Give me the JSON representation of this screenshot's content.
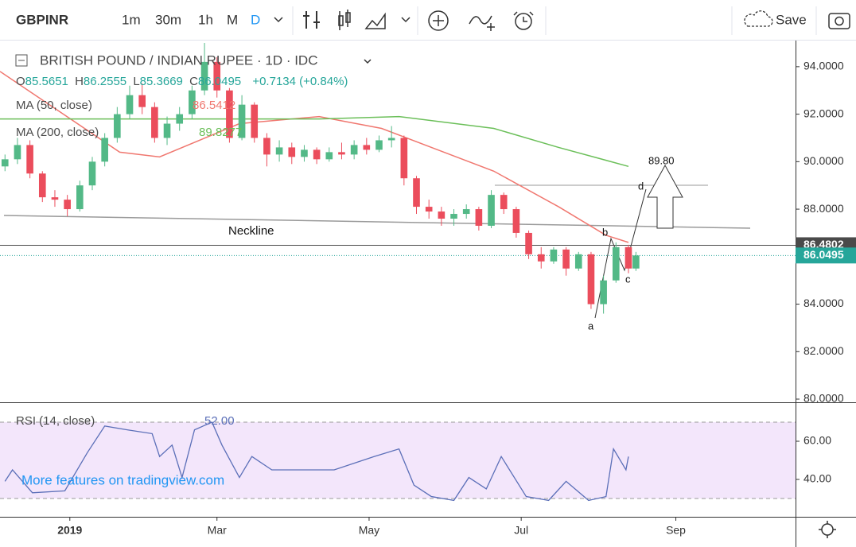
{
  "toolbar": {
    "symbol": "GBPINR",
    "intervals": [
      "1m",
      "30m",
      "1h",
      "M",
      "D"
    ],
    "save": "Save"
  },
  "legend": {
    "title": "BRITISH POUND / INDIAN RUPEE · 1D · IDC",
    "ohlc": [
      {
        "key": "O",
        "value": "85.5651"
      },
      {
        "key": "H",
        "value": "86.2555"
      },
      {
        "key": "L",
        "value": "85.3669"
      },
      {
        "key": "C",
        "value": "86.0495"
      }
    ],
    "change": "+0.7134 (+0.84%)"
  },
  "annotations": {
    "neckline": "Neckline",
    "a": "a",
    "b": "b",
    "c": "c",
    "d": "d",
    "target": "89.80"
  },
  "promo": "More features on tradingview.com",
  "chart_data": {
    "type": "candlestick",
    "up_color": "#53b987",
    "down_color": "#eb4d5c",
    "x": [
      -26,
      -21,
      -16,
      -11,
      -6,
      -1,
      4,
      9,
      14,
      19,
      24,
      29,
      34,
      39,
      44,
      49,
      54,
      59,
      64,
      69,
      74,
      79,
      84,
      89,
      94,
      99,
      104,
      109,
      114,
      119,
      124,
      129,
      134,
      139,
      144,
      149,
      154,
      159,
      164,
      169,
      174,
      179,
      184,
      189,
      194,
      199,
      204,
      209,
      214,
      219,
      224,
      227
    ],
    "open": [
      89.8,
      90.1,
      90.7,
      89.5,
      88.5,
      88.4,
      88.0,
      89.0,
      90.0,
      91.0,
      92.0,
      92.8,
      92.3,
      91.0,
      91.6,
      92.0,
      93.0,
      94.2,
      93.0,
      91.0,
      92.4,
      91.0,
      90.3,
      90.6,
      90.2,
      90.5,
      90.1,
      90.4,
      90.3,
      90.7,
      90.5,
      90.9,
      91.0,
      89.3,
      88.1,
      87.9,
      87.6,
      87.8,
      88.0,
      87.3,
      88.6,
      88.0,
      87.0,
      86.1,
      85.8,
      86.3,
      85.5,
      86.1,
      84.0,
      85.0,
      86.4,
      85.5
    ],
    "high": [
      90.3,
      91.0,
      90.9,
      89.6,
      88.8,
      88.6,
      89.2,
      90.2,
      91.2,
      92.3,
      93.2,
      93.3,
      92.5,
      91.9,
      92.3,
      93.2,
      95.0,
      94.4,
      93.1,
      92.8,
      92.5,
      91.2,
      90.9,
      90.8,
      90.7,
      90.6,
      90.6,
      90.8,
      90.9,
      91.0,
      91.1,
      91.5,
      91.1,
      89.4,
      88.4,
      88.1,
      88.0,
      88.2,
      88.1,
      88.8,
      88.7,
      88.1,
      87.1,
      86.4,
      86.4,
      86.4,
      86.2,
      86.2,
      85.2,
      86.6,
      86.5,
      86.2
    ],
    "low": [
      89.6,
      89.9,
      89.3,
      88.3,
      88.1,
      87.7,
      87.9,
      88.8,
      89.8,
      90.8,
      91.8,
      92.0,
      90.8,
      90.7,
      91.3,
      91.8,
      92.8,
      92.7,
      90.8,
      90.9,
      90.8,
      89.8,
      90.0,
      89.9,
      90.0,
      89.9,
      90.0,
      90.1,
      90.1,
      90.3,
      90.4,
      90.6,
      89.0,
      87.8,
      87.6,
      87.3,
      87.3,
      87.6,
      87.1,
      87.2,
      87.8,
      86.8,
      85.9,
      85.5,
      85.7,
      85.2,
      85.4,
      83.8,
      83.6,
      84.9,
      85.3,
      85.4
    ],
    "close": [
      90.1,
      90.7,
      89.5,
      88.5,
      88.4,
      88.0,
      89.0,
      90.0,
      91.0,
      92.0,
      92.8,
      92.3,
      91.0,
      91.6,
      92.0,
      93.0,
      94.2,
      93.0,
      91.0,
      92.4,
      91.0,
      90.3,
      90.6,
      90.2,
      90.5,
      90.1,
      90.4,
      90.3,
      90.7,
      90.5,
      90.9,
      91.0,
      89.3,
      88.1,
      87.9,
      87.6,
      87.8,
      88.0,
      87.3,
      88.6,
      88.0,
      87.0,
      86.1,
      85.8,
      86.3,
      85.5,
      86.1,
      84.0,
      85.0,
      86.4,
      85.5,
      86.05
    ],
    "series": [
      {
        "name": "MA (50, close)",
        "color": "#f0776f",
        "last": 86.5412,
        "x": [
          -28,
          20,
          36,
          68,
          100,
          125,
          145,
          170,
          196,
          215,
          224
        ],
        "values": [
          93.8,
          90.4,
          90.2,
          91.6,
          91.9,
          91.4,
          90.6,
          89.6,
          88.1,
          86.9,
          86.6
        ]
      },
      {
        "name": "MA (200, close)",
        "color": "#6bbf59",
        "last": 89.8277,
        "x": [
          -28,
          100,
          132,
          170,
          196,
          224
        ],
        "values": [
          91.8,
          91.8,
          91.9,
          91.4,
          90.6,
          89.8
        ]
      }
    ],
    "xlim": [
      -28,
      291
    ],
    "xticks": [
      {
        "value": 0,
        "label": "2019"
      },
      {
        "value": 59,
        "label": "Mar"
      },
      {
        "value": 120,
        "label": "May"
      },
      {
        "value": 181,
        "label": "Jul"
      },
      {
        "value": 243,
        "label": "Sep"
      }
    ],
    "ylim": [
      79.9,
      95.1
    ],
    "yticks": [
      {
        "value": 94,
        "label": "94.0000"
      },
      {
        "value": 92,
        "label": "92.0000"
      },
      {
        "value": 90,
        "label": "90.0000"
      },
      {
        "value": 88,
        "label": "88.0000"
      },
      {
        "value": 86,
        "label": "86.0000"
      },
      {
        "value": 84,
        "label": "84.0000"
      },
      {
        "value": 82,
        "label": "82.0000"
      },
      {
        "value": 80,
        "label": "80.0000"
      }
    ],
    "grid": false,
    "price_markers": [
      {
        "value": 86.4802,
        "color": "#4a4a4a",
        "line": "solid"
      },
      {
        "value": 86.0495,
        "color": "#26a69a",
        "line": "dotted"
      }
    ],
    "rsi": {
      "name": "RSI (14, close)",
      "color": "#5b6fb8",
      "last": {
        "value": 52,
        "label": "52.00"
      },
      "x": [
        -26,
        -23,
        -15,
        -2,
        7,
        14,
        23,
        33,
        36,
        41,
        45,
        50,
        57,
        61,
        68,
        73,
        81,
        93,
        106,
        122,
        132,
        138,
        145,
        154,
        160,
        167,
        173,
        183,
        192,
        199,
        208,
        215,
        218,
        223,
        224
      ],
      "values": [
        39,
        45,
        33,
        34,
        54,
        68,
        66,
        64,
        52,
        58,
        41,
        66,
        70,
        58,
        41,
        52,
        45,
        45,
        45,
        52,
        56,
        37,
        31,
        29,
        41,
        35,
        52,
        31,
        29,
        39,
        29,
        31,
        56,
        45,
        52
      ],
      "ylim": [
        20.4,
        79.6
      ],
      "yticks": [
        {
          "value": 60,
          "label": "60.00"
        },
        {
          "value": 40,
          "label": "40.00"
        }
      ],
      "band": [
        30,
        70
      ],
      "band_color": "#f3e6fb"
    }
  }
}
